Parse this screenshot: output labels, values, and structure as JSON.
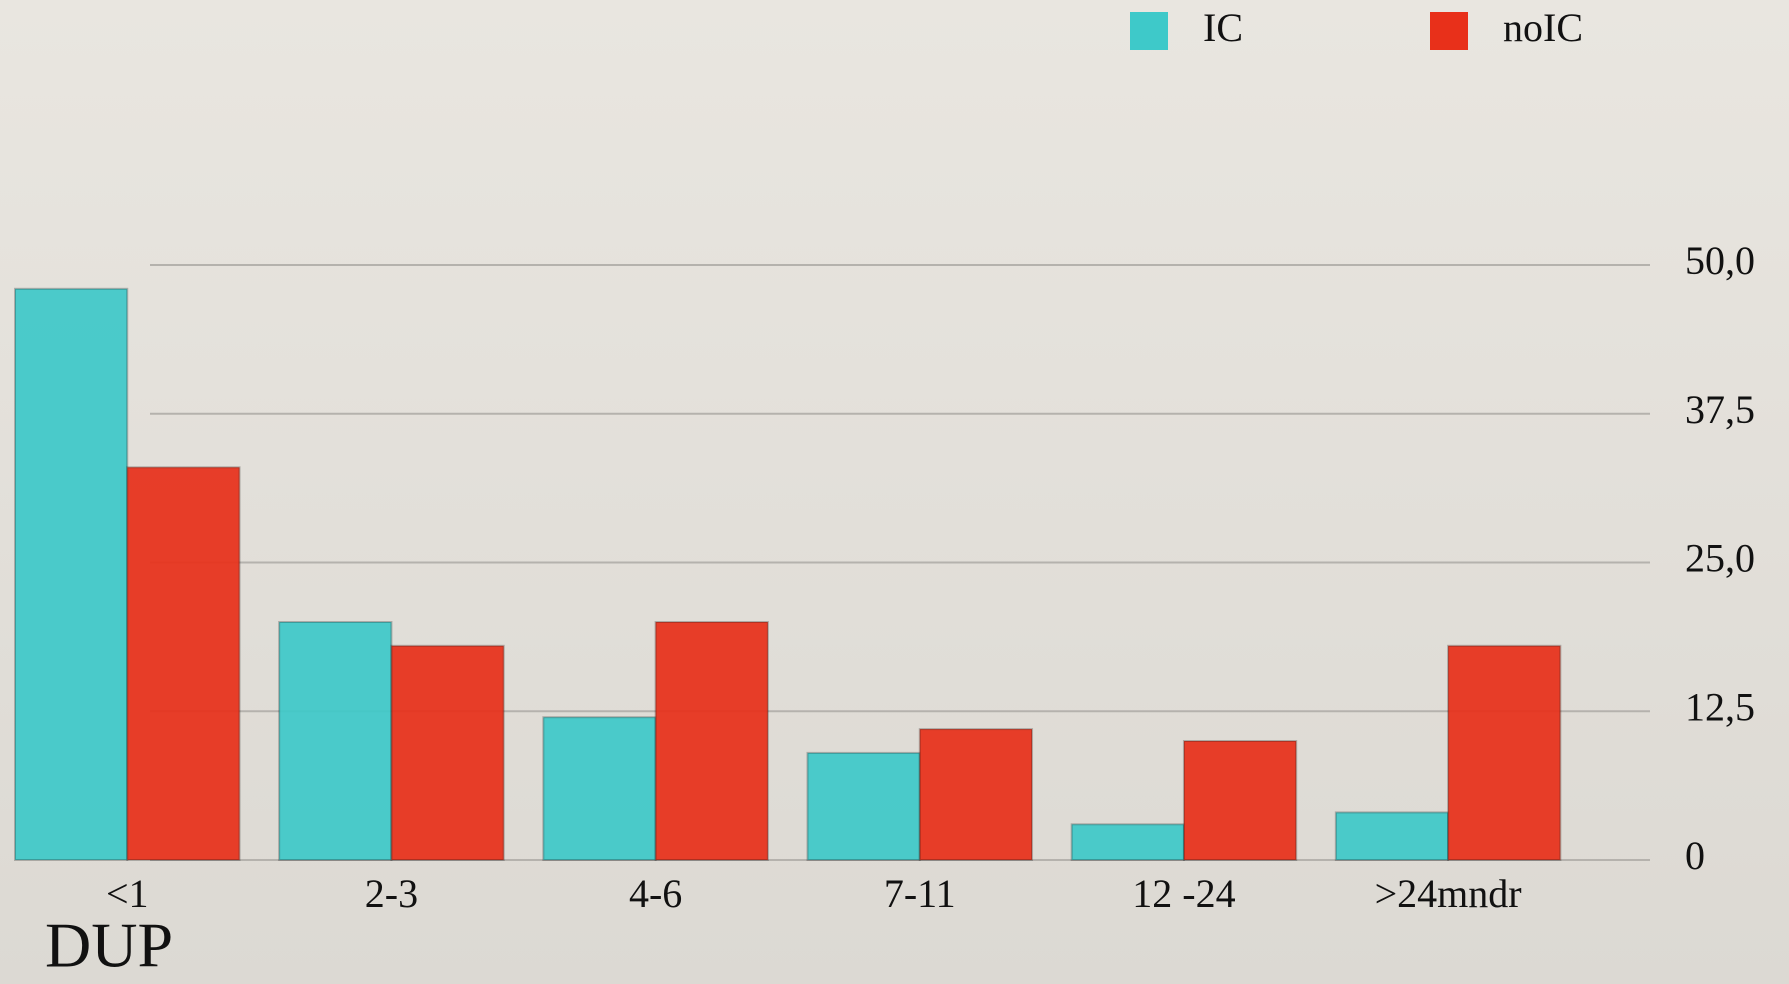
{
  "chart_data": {
    "type": "bar",
    "x_label": "DUP",
    "categories": [
      "<1",
      "2-3",
      "4-6",
      "7-11",
      "12 -24",
      ">24mndr"
    ],
    "series": [
      {
        "name": "IC",
        "color": "#3ec9c9",
        "values": [
          48,
          20,
          12,
          9,
          3,
          4
        ]
      },
      {
        "name": "noIC",
        "color": "#e8301a",
        "values": [
          33,
          18,
          20,
          11,
          10,
          18
        ]
      }
    ],
    "ylim": [
      0,
      50
    ],
    "yticks": [
      0,
      {
        "value": 12.5,
        "label": "12,5"
      },
      {
        "value": 25,
        "label": "25,0"
      },
      {
        "value": 37.5,
        "label": "37,5"
      },
      {
        "value": 50,
        "label": "50,0"
      }
    ],
    "grid": true
  }
}
